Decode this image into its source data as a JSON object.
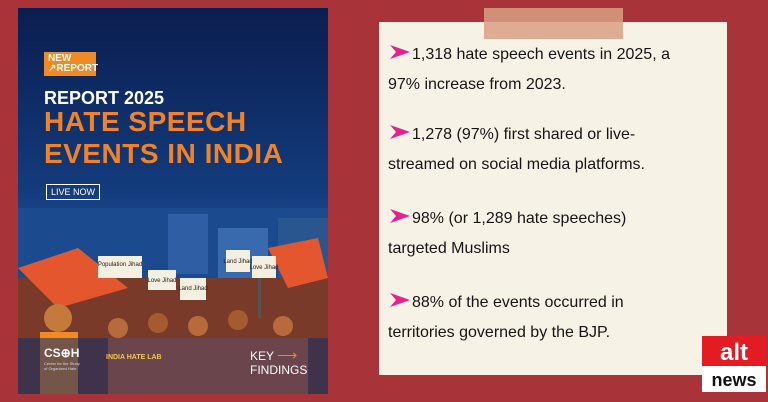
{
  "poster": {
    "badge_new": "NEW",
    "badge_report": "↗REPORT",
    "report_year": "REPORT 2025",
    "title_line1": "HATE SPEECH",
    "title_line2": "EVENTS IN INDIA",
    "live_now": "LIVE NOW",
    "signs": [
      "Population Jihad",
      "Love Jihad",
      "Land Jihad",
      "Land Jihad",
      "Love Jihad"
    ],
    "csoh_logo": "CS⊕H",
    "csoh_sub": "Center for the Study of Organized Hate",
    "lab": "INDIA HATE LAB",
    "key_line1": "KEY",
    "key_line2": "FINDINGS"
  },
  "findings": [
    {
      "line1": "1,318 hate speech events in 2025, a",
      "line2": "97% increase from 2023."
    },
    {
      "line1": "1,278 (97%) first shared or live-",
      "line2": "streamed on social media platforms."
    },
    {
      "line1": "98% (or 1,289 hate speeches)",
      "line2": "targeted Muslims"
    },
    {
      "line1": "88% of the events occurred in",
      "line2": "territories governed by the BJP."
    }
  ],
  "logo": {
    "top": "alt",
    "bottom": "news"
  },
  "colors": {
    "background": "#a8343a",
    "card": "#f7f2e6",
    "accent": "#e8208f",
    "orange": "#f0832a"
  }
}
